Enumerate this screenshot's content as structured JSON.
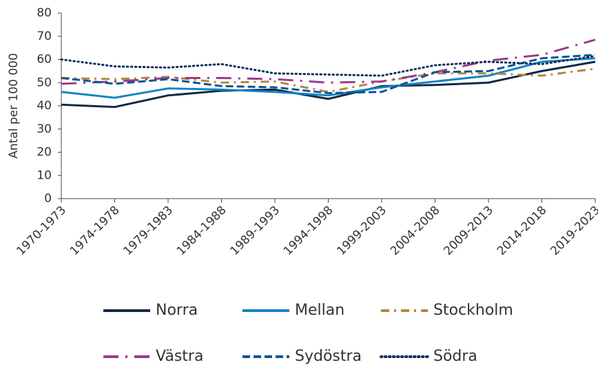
{
  "chart_data": {
    "type": "line",
    "y_label": "Antal per 100 000",
    "categories": [
      "1970-1973",
      "1974-1978",
      "1979-1983",
      "1984-1988",
      "1989-1993",
      "1994-1998",
      "1999-2003",
      "2004-2008",
      "2009-2013",
      "2014-2018",
      "2019-2023"
    ],
    "series": [
      {
        "name": "Norra",
        "color": "#0b2a45",
        "dash": "solid",
        "values": [
          40.5,
          39.5,
          44.5,
          46.5,
          47,
          43,
          48.5,
          49,
          50,
          55,
          59
        ]
      },
      {
        "name": "Mellan",
        "color": "#1283c6",
        "dash": "solid",
        "values": [
          46,
          43.5,
          47.5,
          47,
          46,
          44.5,
          48,
          50.5,
          53,
          59,
          60.5
        ]
      },
      {
        "name": "Stockholm",
        "color": "#b3883c",
        "dash": "dashdot",
        "values": [
          52,
          51.5,
          52.5,
          50,
          50.5,
          46,
          50.5,
          54,
          54,
          53,
          56
        ]
      },
      {
        "name": "Västra",
        "color": "#9a3b8e",
        "dash": "longdashdot",
        "values": [
          49.5,
          50.5,
          52,
          52,
          51.5,
          50,
          50.5,
          54.5,
          59.5,
          62,
          68.5
        ]
      },
      {
        "name": "Sydöstra",
        "color": "#0d5491",
        "dash": "dashed",
        "values": [
          52,
          49.5,
          51.5,
          48.5,
          48,
          45.5,
          46,
          54.5,
          55,
          60.5,
          62
        ]
      },
      {
        "name": "Södra",
        "color": "#0b2e5c",
        "dash": "dotted",
        "values": [
          60,
          57,
          56.5,
          58,
          54,
          53.5,
          53,
          57.5,
          59,
          58,
          61.5
        ]
      }
    ],
    "ylim": [
      0,
      80
    ],
    "yticks": [
      0,
      10,
      20,
      30,
      40,
      50,
      60,
      70,
      80
    ],
    "grid": false,
    "legend": "bottom"
  }
}
